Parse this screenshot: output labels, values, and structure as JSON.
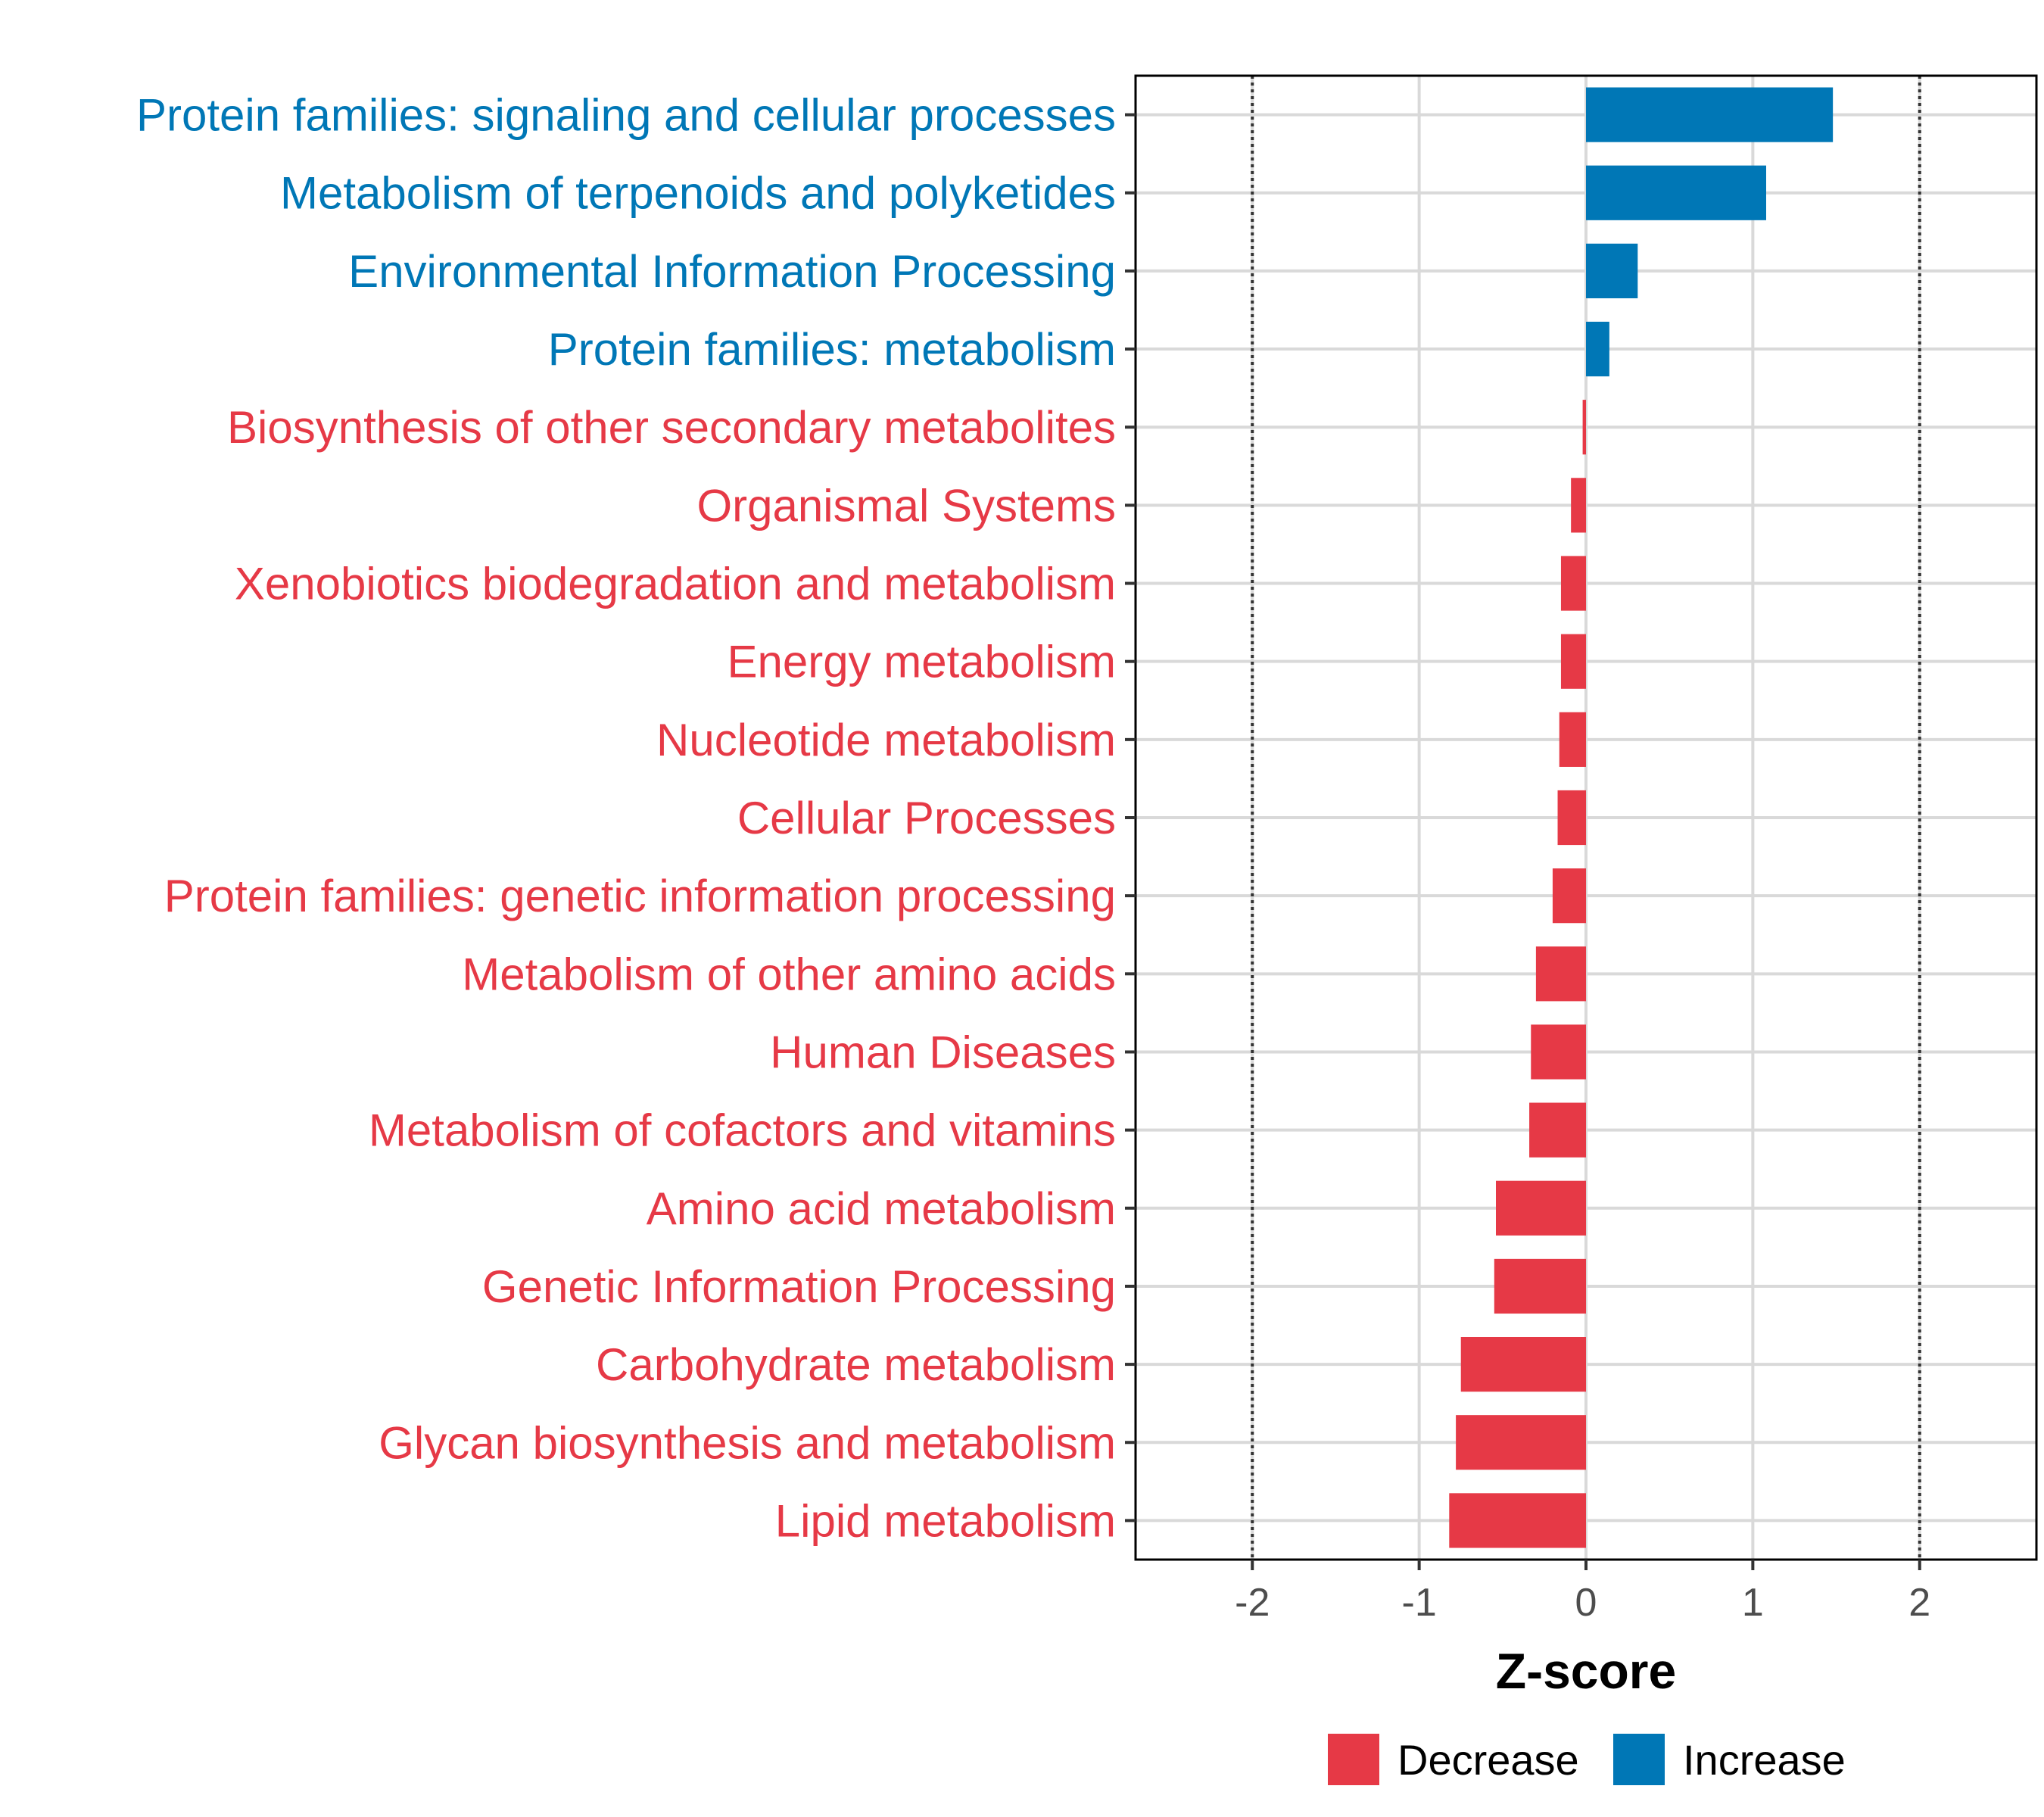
{
  "chart_data": {
    "type": "bar",
    "orientation": "horizontal",
    "title": "",
    "xlabel": "Z-score",
    "ylabel": "",
    "xlim": [
      -2.7,
      2.7
    ],
    "xticks": [
      -2,
      -1,
      0,
      1,
      2
    ],
    "xtick_labels": [
      "-2",
      "-1",
      "0",
      "1",
      "2"
    ],
    "reference_lines": [
      -2,
      2
    ],
    "grid": true,
    "categories": [
      "Protein families: signaling and cellular processes",
      "Metabolism of terpenoids and polyketides",
      "Environmental Information Processing",
      "Protein families: metabolism",
      "Biosynthesis of other secondary metabolites",
      "Organismal Systems",
      "Xenobiotics biodegradation and metabolism",
      "Energy metabolism",
      "Nucleotide metabolism",
      "Cellular Processes",
      "Protein families: genetic information processing",
      "Metabolism of other amino acids",
      "Human Diseases",
      "Metabolism of cofactors and vitamins",
      "Amino acid metabolism",
      "Genetic Information Processing",
      "Carbohydrate metabolism",
      "Glycan biosynthesis and metabolism",
      "Lipid metabolism"
    ],
    "values": [
      1.48,
      1.08,
      0.31,
      0.14,
      -0.02,
      -0.09,
      -0.15,
      -0.15,
      -0.16,
      -0.17,
      -0.2,
      -0.3,
      -0.33,
      -0.34,
      -0.54,
      -0.55,
      -0.75,
      -0.78,
      -0.82
    ],
    "groups": [
      "Increase",
      "Increase",
      "Increase",
      "Increase",
      "Decrease",
      "Decrease",
      "Decrease",
      "Decrease",
      "Decrease",
      "Decrease",
      "Decrease",
      "Decrease",
      "Decrease",
      "Decrease",
      "Decrease",
      "Decrease",
      "Decrease",
      "Decrease",
      "Decrease"
    ],
    "legend": {
      "position": "bottom",
      "entries": [
        {
          "label": "Decrease",
          "color": "#E63946"
        },
        {
          "label": "Increase",
          "color": "#0077B6"
        }
      ]
    }
  },
  "colors": {
    "decrease": "#E63946",
    "increase": "#0077B6",
    "grid": "#d9d9d9",
    "panel_border": "#000000"
  }
}
